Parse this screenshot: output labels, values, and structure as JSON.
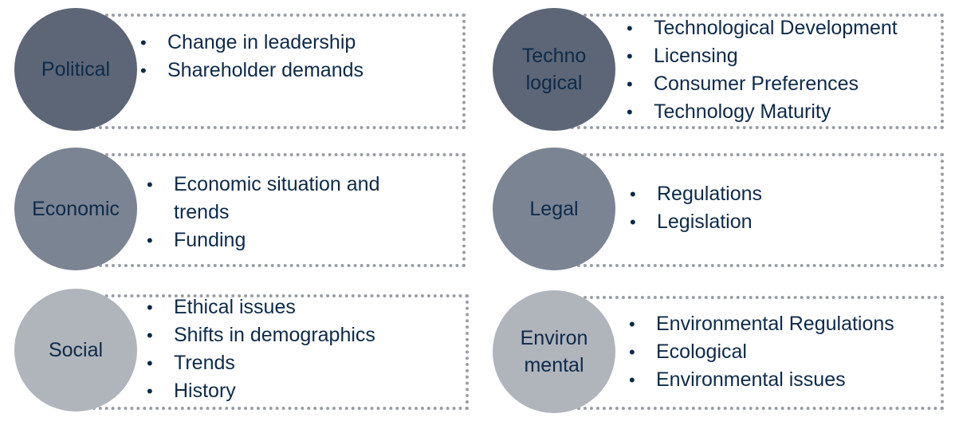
{
  "factors": [
    {
      "name_lines": [
        "Political"
      ],
      "items": [
        "Change in leadership",
        "Shareholder demands"
      ]
    },
    {
      "name_lines": [
        "Techno",
        "logical"
      ],
      "items": [
        "Technological Development",
        "Licensing",
        "Consumer Preferences",
        "Technology Maturity"
      ]
    },
    {
      "name_lines": [
        "Economic"
      ],
      "items": [
        "Economic situation and trends",
        "Funding"
      ]
    },
    {
      "name_lines": [
        "Legal"
      ],
      "items": [
        "Regulations",
        "Legislation"
      ]
    },
    {
      "name_lines": [
        "Social"
      ],
      "items": [
        "Ethical issues",
        "Shifts in demographics",
        "Trends",
        "History"
      ]
    },
    {
      "name_lines": [
        "Environ",
        "mental"
      ],
      "items": [
        "Environmental Regulations",
        "Ecological",
        "Environmental issues"
      ]
    }
  ],
  "colors": {
    "dark": "#5d6676",
    "mid": "#7b8493",
    "light": "#b0b4bb",
    "text": "#0d2a4a",
    "border": "#9a9ea4"
  }
}
